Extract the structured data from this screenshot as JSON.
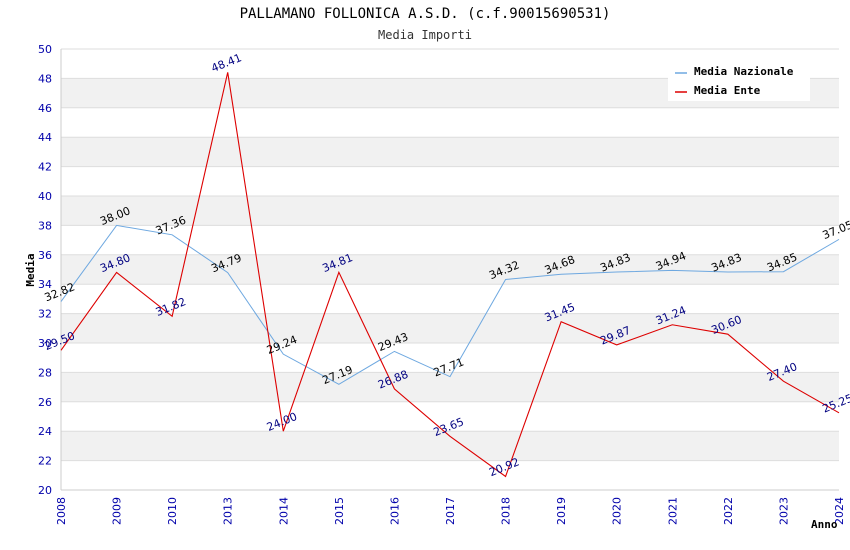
{
  "chart_data": {
    "type": "line",
    "title": "PALLAMANO FOLLONICA A.S.D. (c.f.90015690531)",
    "subtitle": "Media Importi",
    "xlabel": "Anno",
    "ylabel": "Media",
    "ylim": [
      20,
      50
    ],
    "yticks": [
      20,
      22,
      24,
      26,
      28,
      30,
      32,
      34,
      36,
      38,
      40,
      42,
      44,
      46,
      48,
      50
    ],
    "x": [
      2008,
      2009,
      2010,
      2013,
      2014,
      2015,
      2016,
      2017,
      2018,
      2019,
      2020,
      2021,
      2022,
      2023,
      2024
    ],
    "legend_position": "top-right",
    "grid": true,
    "series": [
      {
        "name": "Media Nazionale",
        "color": "#6ea8e0",
        "label_color": "#000000",
        "values": [
          32.82,
          38.0,
          37.36,
          34.79,
          29.24,
          27.19,
          29.43,
          27.71,
          34.32,
          34.68,
          34.83,
          34.94,
          34.83,
          34.85,
          37.05
        ],
        "labels": [
          "32.82",
          "38.00",
          "37.36",
          "34.79",
          "29.24",
          "27.19",
          "29.43",
          "27.71",
          "34.32",
          "34.68",
          "34.83",
          "34.94",
          "34.83",
          "34.85",
          "37.05"
        ]
      },
      {
        "name": "Media Ente",
        "color": "#dd0000",
        "label_color": "#000080",
        "values": [
          29.5,
          34.8,
          31.82,
          48.41,
          24.0,
          34.81,
          26.88,
          23.65,
          20.92,
          31.45,
          29.87,
          31.24,
          30.6,
          27.4,
          25.25
        ],
        "labels": [
          "29.50",
          "34.80",
          "31.82",
          "48.41",
          "24.00",
          "34.81",
          "26.88",
          "23.65",
          "20.92",
          "31.45",
          "29.87",
          "31.24",
          "30.60",
          "27.40",
          "25.25"
        ]
      }
    ]
  }
}
